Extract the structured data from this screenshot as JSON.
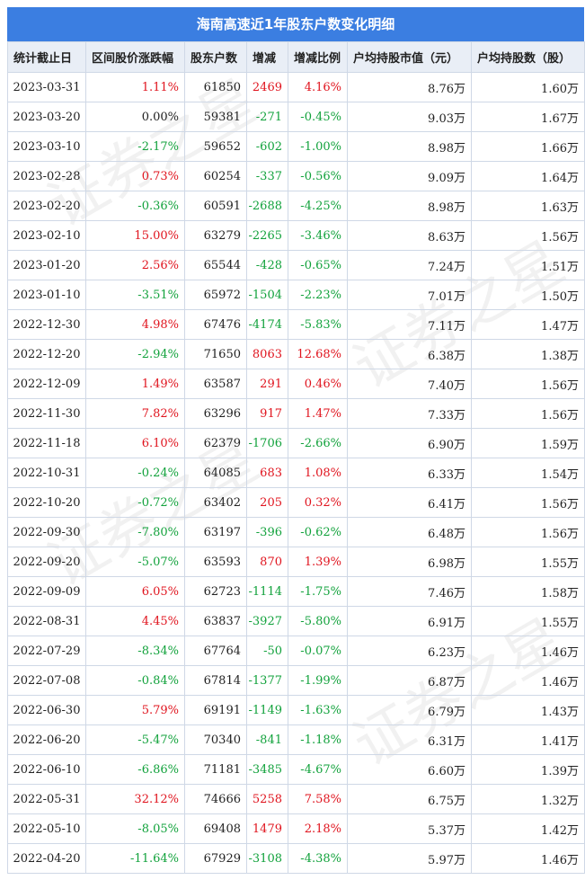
{
  "title": "海南高速近1年股东户数变化明细",
  "headers": [
    "统计截止日",
    "区间股价涨跌幅",
    "股东户数",
    "增减",
    "增减比例",
    "户均持股市值（元）",
    "户均持股数（股）"
  ],
  "rows": [
    [
      "2023-03-31",
      "1.11%",
      "61850",
      "2469",
      "4.16%",
      "8.76万",
      "1.60万"
    ],
    [
      "2023-03-20",
      "0.00%",
      "59381",
      "-271",
      "-0.45%",
      "9.03万",
      "1.67万"
    ],
    [
      "2023-03-10",
      "-2.17%",
      "59652",
      "-602",
      "-1.00%",
      "8.98万",
      "1.66万"
    ],
    [
      "2023-02-28",
      "0.73%",
      "60254",
      "-337",
      "-0.56%",
      "9.09万",
      "1.64万"
    ],
    [
      "2023-02-20",
      "-0.36%",
      "60591",
      "-2688",
      "-4.25%",
      "8.98万",
      "1.63万"
    ],
    [
      "2023-02-10",
      "15.00%",
      "63279",
      "-2265",
      "-3.46%",
      "8.63万",
      "1.56万"
    ],
    [
      "2023-01-20",
      "2.56%",
      "65544",
      "-428",
      "-0.65%",
      "7.24万",
      "1.51万"
    ],
    [
      "2023-01-10",
      "-3.51%",
      "65972",
      "-1504",
      "-2.23%",
      "7.01万",
      "1.50万"
    ],
    [
      "2022-12-30",
      "4.98%",
      "67476",
      "-4174",
      "-5.83%",
      "7.11万",
      "1.47万"
    ],
    [
      "2022-12-20",
      "-2.94%",
      "71650",
      "8063",
      "12.68%",
      "6.38万",
      "1.38万"
    ],
    [
      "2022-12-09",
      "1.49%",
      "63587",
      "291",
      "0.46%",
      "7.40万",
      "1.56万"
    ],
    [
      "2022-11-30",
      "7.82%",
      "63296",
      "917",
      "1.47%",
      "7.33万",
      "1.56万"
    ],
    [
      "2022-11-18",
      "6.10%",
      "62379",
      "-1706",
      "-2.66%",
      "6.90万",
      "1.59万"
    ],
    [
      "2022-10-31",
      "-0.24%",
      "64085",
      "683",
      "1.08%",
      "6.33万",
      "1.54万"
    ],
    [
      "2022-10-20",
      "-0.72%",
      "63402",
      "205",
      "0.32%",
      "6.41万",
      "1.56万"
    ],
    [
      "2022-09-30",
      "-7.80%",
      "63197",
      "-396",
      "-0.62%",
      "6.48万",
      "1.56万"
    ],
    [
      "2022-09-20",
      "-5.07%",
      "63593",
      "870",
      "1.39%",
      "6.98万",
      "1.55万"
    ],
    [
      "2022-09-09",
      "6.05%",
      "62723",
      "-1114",
      "-1.75%",
      "7.46万",
      "1.58万"
    ],
    [
      "2022-08-31",
      "4.45%",
      "63837",
      "-3927",
      "-5.80%",
      "6.91万",
      "1.55万"
    ],
    [
      "2022-07-29",
      "-8.34%",
      "67764",
      "-50",
      "-0.07%",
      "6.23万",
      "1.46万"
    ],
    [
      "2022-07-08",
      "-0.84%",
      "67814",
      "-1377",
      "-1.99%",
      "6.87万",
      "1.46万"
    ],
    [
      "2022-06-30",
      "5.79%",
      "69191",
      "-1149",
      "-1.63%",
      "6.79万",
      "1.43万"
    ],
    [
      "2022-06-20",
      "-5.47%",
      "70340",
      "-841",
      "-1.18%",
      "6.31万",
      "1.41万"
    ],
    [
      "2022-06-10",
      "-6.86%",
      "71181",
      "-3485",
      "-4.67%",
      "6.60万",
      "1.39万"
    ],
    [
      "2022-05-31",
      "32.12%",
      "74666",
      "5258",
      "7.58%",
      "6.75万",
      "1.32万"
    ],
    [
      "2022-05-10",
      "-8.05%",
      "69408",
      "1479",
      "2.18%",
      "5.37万",
      "1.42万"
    ],
    [
      "2022-04-20",
      "-11.64%",
      "67929",
      "-3108",
      "-4.38%",
      "5.97万",
      "1.46万"
    ]
  ],
  "watermark": "证券之星",
  "colors": {
    "header_bar": "#3b7ee1",
    "positive": "#e0141e",
    "negative": "#12a23c"
  }
}
